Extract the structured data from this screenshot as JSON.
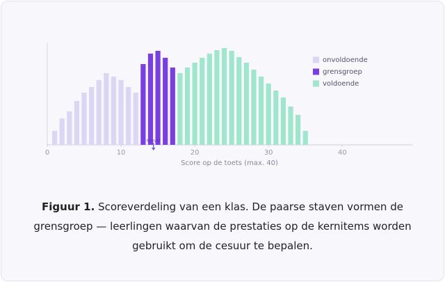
{
  "chart_data": {
    "type": "bar",
    "xlabel": "Score op de toets (max. 40)",
    "xlim": [
      0,
      49.5
    ],
    "xticks": [
      0,
      10,
      20,
      30,
      40
    ],
    "ylim": [
      0,
      150
    ],
    "legend": "top-right",
    "series": [
      {
        "name": "onvoldoende",
        "color": "#dcd6f5",
        "x": [
          1,
          2,
          3,
          4,
          5,
          6,
          7,
          8,
          9,
          10,
          11,
          12
        ],
        "values": [
          20,
          38,
          48,
          63,
          75,
          83,
          93,
          103,
          98,
          93,
          83,
          75
        ]
      },
      {
        "name": "grensgroep",
        "color": "#7a3fe0",
        "x": [
          13,
          14,
          15,
          16,
          17
        ],
        "values": [
          116,
          131,
          135,
          125,
          111
        ]
      },
      {
        "name": "voldoende",
        "color": "#a0e6cc",
        "x": [
          18,
          19,
          20,
          21,
          22,
          23,
          24,
          25,
          26,
          27,
          28,
          29,
          30,
          31,
          32,
          33,
          34,
          35
        ],
        "values": [
          103,
          111,
          118,
          125,
          131,
          136,
          139,
          135,
          126,
          118,
          108,
          98,
          88,
          78,
          68,
          55,
          43,
          20
        ]
      }
    ],
    "annotation": {
      "text": "cesuur",
      "x": 14.4
    }
  },
  "caption": {
    "label": "Figuur 1.",
    "text": "Scoreverdeling van een klas. De paarse staven vormen de grensgroep — leerlingen waarvan de prestaties op de kernitems worden gebruikt om de cesuur te bepalen."
  }
}
